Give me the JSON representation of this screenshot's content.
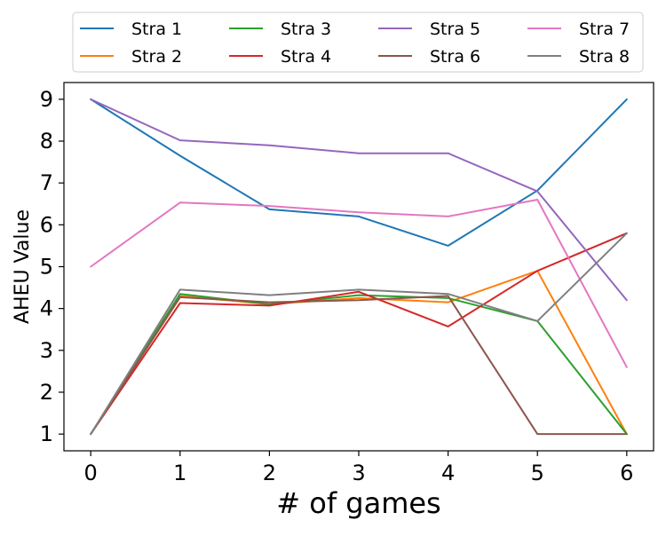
{
  "chart_data": {
    "type": "line",
    "title": "",
    "xlabel": "# of games",
    "ylabel": "AHEU Value",
    "x": [
      0,
      1,
      2,
      3,
      4,
      5,
      6
    ],
    "xlim": [
      -0.3,
      6.3
    ],
    "ylim": [
      0.6,
      9.4
    ],
    "xticks": [
      0,
      1,
      2,
      3,
      4,
      5,
      6
    ],
    "yticks": [
      1,
      2,
      3,
      4,
      5,
      6,
      7,
      8,
      9
    ],
    "grid": false,
    "legend": "top, outside plot, 4 columns",
    "series": [
      {
        "name": "Stra 1",
        "color": "#1f77b4",
        "values": [
          9,
          7.65,
          6.37,
          6.2,
          5.5,
          6.82,
          9
        ]
      },
      {
        "name": "Stra 2",
        "color": "#ff7f0e",
        "values": [
          1,
          4.3,
          4.1,
          4.25,
          4.15,
          4.9,
          1
        ]
      },
      {
        "name": "Stra 3",
        "color": "#2ca02c",
        "values": [
          1,
          4.35,
          4.1,
          4.32,
          4.25,
          3.7,
          1
        ]
      },
      {
        "name": "Stra 4",
        "color": "#d62728",
        "values": [
          1,
          4.13,
          4.07,
          4.4,
          3.57,
          4.9,
          5.8
        ]
      },
      {
        "name": "Stra 5",
        "color": "#9467bd",
        "values": [
          9,
          8.02,
          7.9,
          7.71,
          7.71,
          6.8,
          4.2
        ]
      },
      {
        "name": "Stra 6",
        "color": "#8c564b",
        "values": [
          1,
          4.27,
          4.15,
          4.2,
          4.3,
          1,
          1
        ]
      },
      {
        "name": "Stra 7",
        "color": "#e377c2",
        "values": [
          5,
          6.53,
          6.45,
          6.3,
          6.2,
          6.6,
          2.6
        ]
      },
      {
        "name": "Stra 8",
        "color": "#7f7f7f",
        "values": [
          1,
          4.45,
          4.32,
          4.45,
          4.35,
          3.7,
          5.8
        ]
      }
    ]
  }
}
